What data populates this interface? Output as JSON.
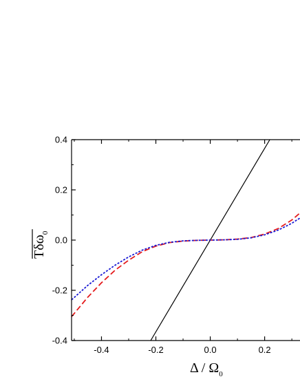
{
  "chart_data": {
    "type": "line",
    "xlabel": {
      "main": "Δ / Ω",
      "sub": "0"
    },
    "ylabel": {
      "main": "Tδω",
      "sub": "0",
      "overline": true
    },
    "xlim": [
      -0.51,
      0.33
    ],
    "ylim": [
      -0.4,
      0.4
    ],
    "xticks": [
      -0.4,
      -0.2,
      0.0,
      0.2
    ],
    "xtick_labels": [
      "-0.4",
      "-0.2",
      "0.0",
      "0.2"
    ],
    "yticks": [
      -0.4,
      -0.2,
      0.0,
      0.2,
      0.4
    ],
    "ytick_labels": [
      "-0.4",
      "-0.2",
      "0.0",
      "0.2",
      "0.4"
    ],
    "grid": false,
    "legend": "none",
    "series": [
      {
        "color": "#000000",
        "style": "solid",
        "x": [
          -0.219,
          0.219
        ],
        "y": [
          -0.4,
          0.4
        ]
      },
      {
        "color": "#e41a1c",
        "style": "dashed",
        "x": [
          -0.51,
          -0.45,
          -0.4,
          -0.35,
          -0.3,
          -0.25,
          -0.2,
          -0.15,
          -0.1,
          -0.05,
          0.0,
          0.05,
          0.1,
          0.15,
          0.2,
          0.25,
          0.3,
          0.33
        ],
        "y": [
          -0.305,
          -0.227,
          -0.17,
          -0.12,
          -0.08,
          -0.046,
          -0.024,
          -0.01,
          -0.004,
          -0.001,
          0.0,
          0.001,
          0.004,
          0.01,
          0.024,
          0.046,
          0.08,
          0.108
        ]
      },
      {
        "color": "#1a1ad4",
        "style": "dotted",
        "x": [
          -0.51,
          -0.45,
          -0.4,
          -0.35,
          -0.3,
          -0.25,
          -0.2,
          -0.15,
          -0.1,
          -0.05,
          0.0,
          0.05,
          0.1,
          0.15,
          0.2,
          0.25,
          0.3,
          0.33
        ],
        "y": [
          -0.238,
          -0.18,
          -0.138,
          -0.1,
          -0.067,
          -0.04,
          -0.021,
          -0.009,
          -0.003,
          -0.001,
          0.0,
          0.001,
          0.003,
          0.009,
          0.021,
          0.04,
          0.067,
          0.088
        ]
      }
    ]
  }
}
